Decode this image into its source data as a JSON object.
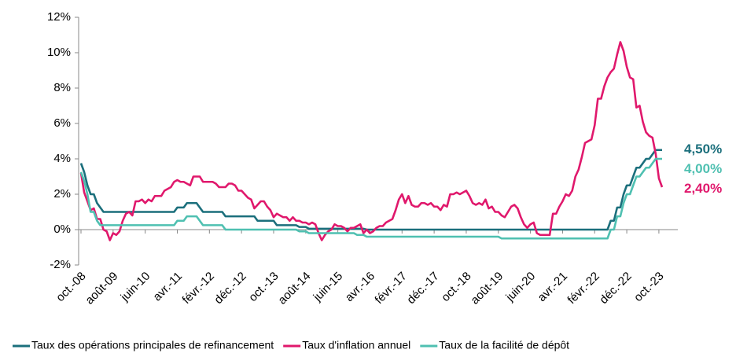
{
  "chart_data": {
    "type": "line",
    "categories": [
      "oct.-08",
      null,
      null,
      null,
      null,
      null,
      null,
      null,
      null,
      null,
      "août-09",
      null,
      null,
      null,
      null,
      null,
      null,
      null,
      null,
      null,
      "juin-10",
      null,
      null,
      null,
      null,
      null,
      null,
      null,
      null,
      null,
      "avr.-11",
      null,
      null,
      null,
      null,
      null,
      null,
      null,
      null,
      null,
      "févr.-12",
      null,
      null,
      null,
      null,
      null,
      null,
      null,
      null,
      null,
      "déc.-12",
      null,
      null,
      null,
      null,
      null,
      null,
      null,
      null,
      null,
      "oct.-13",
      null,
      null,
      null,
      null,
      null,
      null,
      null,
      null,
      null,
      "août-14",
      null,
      null,
      null,
      null,
      null,
      null,
      null,
      null,
      null,
      "juin-15",
      null,
      null,
      null,
      null,
      null,
      null,
      null,
      null,
      null,
      "avr.-16",
      null,
      null,
      null,
      null,
      null,
      null,
      null,
      null,
      null,
      "févr.-17",
      null,
      null,
      null,
      null,
      null,
      null,
      null,
      null,
      null,
      "déc.-17",
      null,
      null,
      null,
      null,
      null,
      null,
      null,
      null,
      null,
      "oct.-18",
      null,
      null,
      null,
      null,
      null,
      null,
      null,
      null,
      null,
      "août-19",
      null,
      null,
      null,
      null,
      null,
      null,
      null,
      null,
      null,
      "juin-20",
      null,
      null,
      null,
      null,
      null,
      null,
      null,
      null,
      null,
      "avr.-21",
      null,
      null,
      null,
      null,
      null,
      null,
      null,
      null,
      null,
      "févr.-22",
      null,
      null,
      null,
      null,
      null,
      null,
      null,
      null,
      null,
      "déc.-22",
      null,
      null,
      null,
      null,
      null,
      null,
      null,
      null,
      null,
      "oct.-23",
      null
    ],
    "series": [
      {
        "name": "Taux des opérations principales de refinancement",
        "color": "#1b6f7c",
        "values": [
          3.75,
          3.25,
          2.5,
          2.0,
          2.0,
          1.5,
          1.25,
          1.0,
          1.0,
          1.0,
          1.0,
          1.0,
          1.0,
          1.0,
          1.0,
          1.0,
          1.0,
          1.0,
          1.0,
          1.0,
          1.0,
          1.0,
          1.0,
          1.0,
          1.0,
          1.0,
          1.0,
          1.0,
          1.0,
          1.0,
          1.25,
          1.25,
          1.25,
          1.5,
          1.5,
          1.5,
          1.5,
          1.25,
          1.0,
          1.0,
          1.0,
          1.0,
          1.0,
          1.0,
          1.0,
          0.75,
          0.75,
          0.75,
          0.75,
          0.75,
          0.75,
          0.75,
          0.75,
          0.75,
          0.75,
          0.5,
          0.5,
          0.5,
          0.5,
          0.5,
          0.5,
          0.25,
          0.25,
          0.25,
          0.25,
          0.25,
          0.25,
          0.25,
          0.15,
          0.15,
          0.15,
          0.05,
          0.05,
          0.05,
          0.05,
          0.05,
          0.05,
          0.05,
          0.05,
          0.05,
          0.05,
          0.05,
          0.05,
          0.05,
          0.05,
          0.05,
          0.05,
          0.05,
          0.05,
          0,
          0,
          0,
          0,
          0,
          0,
          0,
          0,
          0,
          0,
          0,
          0,
          0,
          0,
          0,
          0,
          0,
          0,
          0,
          0,
          0,
          0,
          0,
          0,
          0,
          0,
          0,
          0,
          0,
          0,
          0,
          0,
          0,
          0,
          0,
          0,
          0,
          0,
          0,
          0,
          0,
          0,
          0,
          0,
          0,
          0,
          0,
          0,
          0,
          0,
          0,
          0,
          0,
          0,
          0,
          0,
          0,
          0,
          0,
          0,
          0,
          0,
          0,
          0,
          0,
          0,
          0,
          0,
          0,
          0,
          0,
          0,
          0,
          0,
          0,
          0,
          0.5,
          0.5,
          1.25,
          1.25,
          2.0,
          2.5,
          2.5,
          3.0,
          3.5,
          3.5,
          3.75,
          4.0,
          4.0,
          4.25,
          4.5,
          4.5,
          4.5
        ]
      },
      {
        "name": "Taux d'inflation annuel",
        "color": "#e0186c",
        "values": [
          3.2,
          2.1,
          1.6,
          1.1,
          1.2,
          0.6,
          0.6,
          0.0,
          -0.1,
          -0.6,
          -0.2,
          -0.3,
          -0.1,
          0.5,
          0.9,
          1.0,
          0.8,
          1.6,
          1.6,
          1.7,
          1.5,
          1.7,
          1.6,
          1.9,
          1.9,
          1.9,
          2.2,
          2.3,
          2.4,
          2.7,
          2.8,
          2.7,
          2.7,
          2.6,
          2.5,
          3.0,
          3.0,
          3.0,
          2.7,
          2.7,
          2.7,
          2.7,
          2.6,
          2.4,
          2.4,
          2.4,
          2.6,
          2.6,
          2.5,
          2.2,
          2.2,
          2.0,
          1.8,
          1.7,
          1.2,
          1.4,
          1.6,
          1.6,
          1.3,
          1.1,
          0.7,
          0.9,
          0.8,
          0.7,
          0.7,
          0.5,
          0.7,
          0.5,
          0.5,
          0.4,
          0.4,
          0.3,
          0.4,
          0.3,
          -0.2,
          -0.6,
          -0.3,
          -0.1,
          0.0,
          0.3,
          0.2,
          0.2,
          0.1,
          -0.1,
          0.1,
          0.1,
          0.2,
          0.3,
          -0.2,
          0.0,
          -0.2,
          -0.1,
          0.1,
          0.2,
          0.2,
          0.4,
          0.5,
          0.6,
          1.1,
          1.7,
          2.0,
          1.5,
          1.9,
          1.4,
          1.3,
          1.3,
          1.5,
          1.5,
          1.4,
          1.5,
          1.3,
          1.3,
          1.1,
          1.4,
          1.3,
          2.0,
          2.0,
          2.1,
          2.0,
          2.1,
          2.2,
          1.9,
          1.5,
          1.4,
          1.5,
          1.4,
          1.7,
          1.2,
          1.3,
          1.0,
          1.0,
          0.8,
          0.7,
          1.0,
          1.3,
          1.4,
          1.2,
          0.7,
          0.3,
          0.1,
          0.3,
          0.4,
          -0.2,
          -0.3,
          -0.3,
          -0.3,
          -0.3,
          0.9,
          0.9,
          1.3,
          1.6,
          2.0,
          1.9,
          2.2,
          3.0,
          3.4,
          4.1,
          4.9,
          5.0,
          5.1,
          5.9,
          7.4,
          7.4,
          8.1,
          8.6,
          8.9,
          9.1,
          9.9,
          10.6,
          10.1,
          9.2,
          8.6,
          8.5,
          6.9,
          7.0,
          6.1,
          5.5,
          5.3,
          5.2,
          4.3,
          2.9,
          2.4
        ]
      },
      {
        "name": "Taux de la facilité de dépôt",
        "color": "#4fc0b1",
        "values": [
          3.25,
          2.75,
          2.0,
          1.0,
          1.0,
          0.5,
          0.25,
          0.25,
          0.25,
          0.25,
          0.25,
          0.25,
          0.25,
          0.25,
          0.25,
          0.25,
          0.25,
          0.25,
          0.25,
          0.25,
          0.25,
          0.25,
          0.25,
          0.25,
          0.25,
          0.25,
          0.25,
          0.25,
          0.25,
          0.25,
          0.5,
          0.5,
          0.5,
          0.75,
          0.75,
          0.75,
          0.75,
          0.5,
          0.25,
          0.25,
          0.25,
          0.25,
          0.25,
          0.25,
          0.25,
          0,
          0,
          0,
          0,
          0,
          0,
          0,
          0,
          0,
          0,
          0,
          0,
          0,
          0,
          0,
          0,
          0,
          0,
          0,
          0,
          0,
          0,
          0,
          -0.1,
          -0.1,
          -0.1,
          -0.2,
          -0.2,
          -0.2,
          -0.2,
          -0.2,
          -0.2,
          -0.2,
          -0.2,
          -0.2,
          -0.2,
          -0.2,
          -0.2,
          -0.2,
          -0.2,
          -0.2,
          -0.3,
          -0.3,
          -0.3,
          -0.4,
          -0.4,
          -0.4,
          -0.4,
          -0.4,
          -0.4,
          -0.4,
          -0.4,
          -0.4,
          -0.4,
          -0.4,
          -0.4,
          -0.4,
          -0.4,
          -0.4,
          -0.4,
          -0.4,
          -0.4,
          -0.4,
          -0.4,
          -0.4,
          -0.4,
          -0.4,
          -0.4,
          -0.4,
          -0.4,
          -0.4,
          -0.4,
          -0.4,
          -0.4,
          -0.4,
          -0.4,
          -0.4,
          -0.4,
          -0.4,
          -0.4,
          -0.4,
          -0.4,
          -0.4,
          -0.4,
          -0.4,
          -0.4,
          -0.5,
          -0.5,
          -0.5,
          -0.5,
          -0.5,
          -0.5,
          -0.5,
          -0.5,
          -0.5,
          -0.5,
          -0.5,
          -0.5,
          -0.5,
          -0.5,
          -0.5,
          -0.5,
          -0.5,
          -0.5,
          -0.5,
          -0.5,
          -0.5,
          -0.5,
          -0.5,
          -0.5,
          -0.5,
          -0.5,
          -0.5,
          -0.5,
          -0.5,
          -0.5,
          -0.5,
          -0.5,
          -0.5,
          -0.5,
          0,
          0,
          0.75,
          0.75,
          1.5,
          2.0,
          2.0,
          2.5,
          3.0,
          3.0,
          3.25,
          3.5,
          3.5,
          3.75,
          4.0,
          4.0,
          4.0
        ]
      }
    ],
    "annotations": [
      {
        "label": "4,50%",
        "value": 4.5,
        "color": "#1b6f7c"
      },
      {
        "label": "4,00%",
        "value": 4.0,
        "color": "#4fc0b1"
      },
      {
        "label": "2,40%",
        "value": 2.4,
        "color": "#e0186c"
      }
    ],
    "ylim": [
      -2,
      12
    ],
    "yticks": [
      {
        "value": -2,
        "label": "-2%"
      },
      {
        "value": 0,
        "label": "0%"
      },
      {
        "value": 2,
        "label": "2%"
      },
      {
        "value": 4,
        "label": "4%"
      },
      {
        "value": 6,
        "label": "6%"
      },
      {
        "value": 8,
        "label": "8%"
      },
      {
        "value": 10,
        "label": "10%"
      },
      {
        "value": 12,
        "label": "12%"
      }
    ],
    "grid": false,
    "legend": "bottom"
  }
}
